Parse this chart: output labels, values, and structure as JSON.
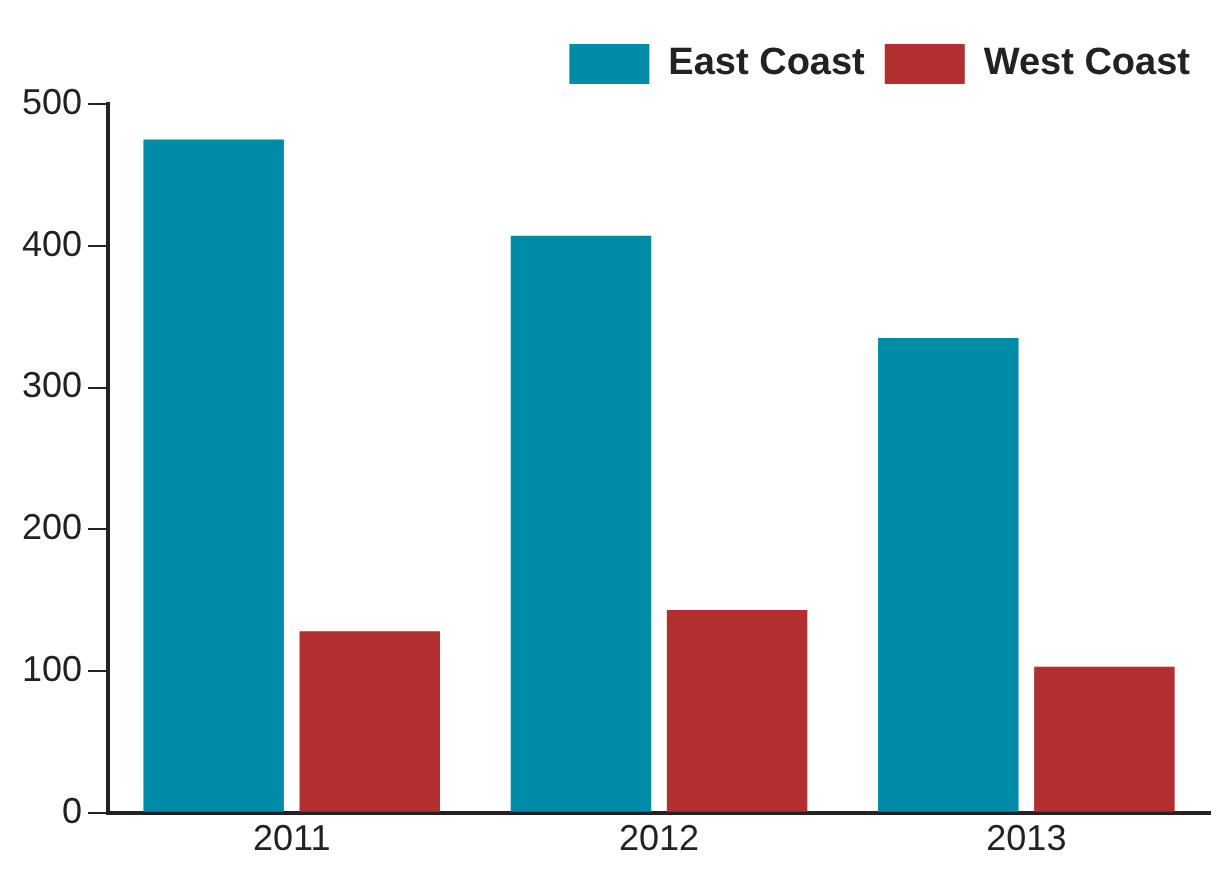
{
  "chart_data": {
    "type": "bar",
    "categories": [
      "2011",
      "2012",
      "2013"
    ],
    "series": [
      {
        "name": "East Coast",
        "color": "#008ca8",
        "values": [
          475,
          407,
          335
        ]
      },
      {
        "name": "West Coast",
        "color": "#b32e2e",
        "values": [
          128,
          143,
          103
        ]
      }
    ],
    "ylim": [
      0,
      500
    ],
    "yticks": [
      0,
      100,
      200,
      300,
      400,
      500
    ],
    "grid": false,
    "legend": "top right"
  }
}
